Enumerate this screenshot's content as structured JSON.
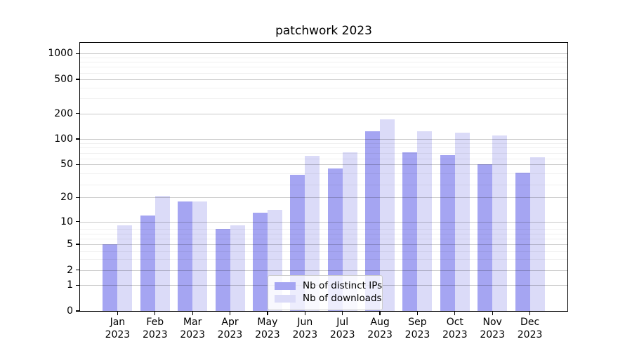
{
  "title": "patchwork 2023",
  "chart_data": {
    "type": "bar",
    "title": "patchwork 2023",
    "categories": [
      "Jan",
      "Feb",
      "Mar",
      "Apr",
      "May",
      "Jun",
      "Jul",
      "Aug",
      "Sep",
      "Oct",
      "Nov",
      "Dec"
    ],
    "x_year_label": "2023",
    "series": [
      {
        "name": "Nb of distinct IPs",
        "color": "#a5a5f2",
        "values": [
          5,
          12,
          18,
          8,
          13,
          38,
          45,
          124,
          70,
          65,
          50,
          40
        ]
      },
      {
        "name": "Nb of downloads",
        "color": "#dbdbf8",
        "values": [
          9,
          21,
          18,
          9,
          14,
          64,
          70,
          172,
          124,
          119,
          110,
          61
        ]
      }
    ],
    "y_axis": {
      "scale": "log1p",
      "tick_values": [
        0,
        1,
        2,
        5,
        10,
        20,
        50,
        100,
        200,
        500,
        1000
      ],
      "minor_gridline_values": [
        3,
        4,
        6,
        7,
        8,
        29,
        39,
        59,
        69,
        79,
        89,
        299,
        399,
        599,
        699,
        799,
        899
      ]
    },
    "grid": "horizontal",
    "legend_position": "lower center"
  }
}
